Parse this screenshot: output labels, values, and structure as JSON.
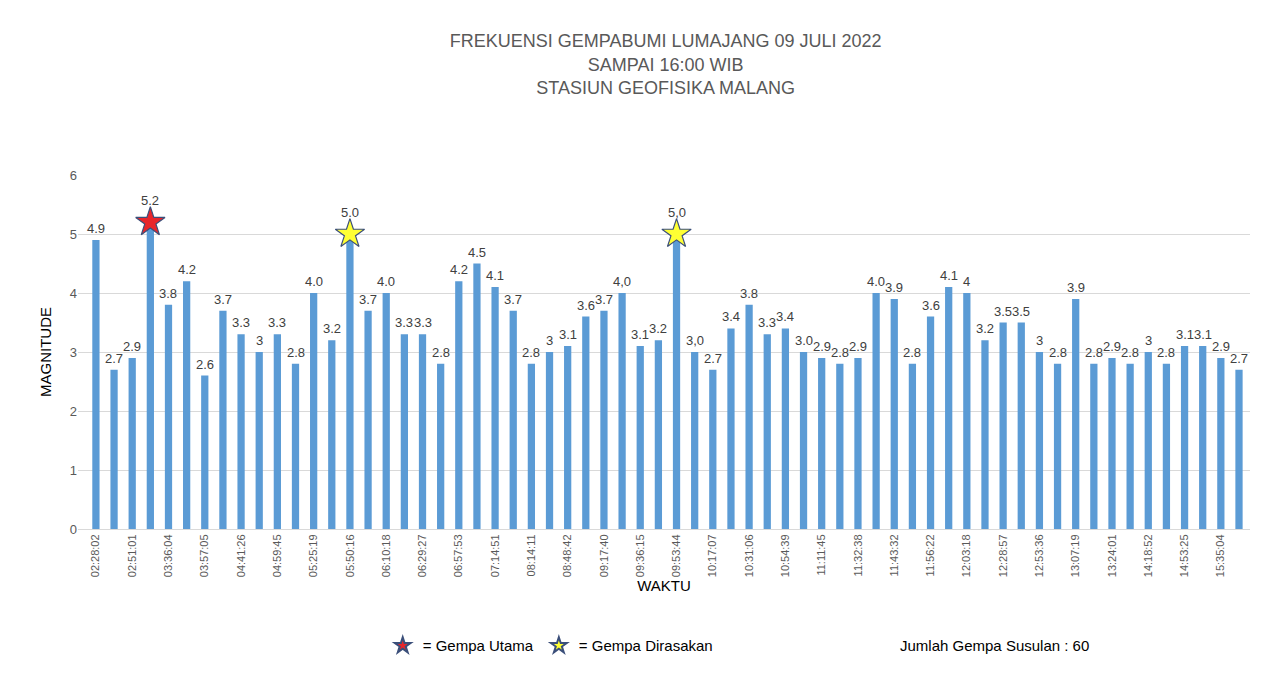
{
  "chart_data": {
    "type": "bar",
    "title": [
      "FREKUENSI GEMPABUMI LUMAJANG 09 JULI 2022",
      "SAMPAI 16:00 WIB",
      "STASIUN GEOFISIKA MALANG"
    ],
    "x_label": "WAKTU",
    "y_label": "MAGNITUDE",
    "categories": [
      "02:28:02",
      null,
      "02:51:01",
      null,
      "03:36:04",
      null,
      "03:57:05",
      null,
      "04:41:26",
      null,
      "04:59:45",
      null,
      "05:25:19",
      null,
      "05:50:16",
      null,
      "06:10:18",
      null,
      "06:29:27",
      null,
      "06:57:53",
      null,
      "07:14:51",
      null,
      "08:14:11",
      null,
      "08:48:42",
      null,
      "09:17:40",
      null,
      "09:36:15",
      null,
      "09:53:44",
      null,
      "10:17:07",
      null,
      "10:31:06",
      null,
      "10:54:39",
      null,
      "11:11:45",
      null,
      "11:32:38",
      null,
      "11:43:32",
      null,
      "11:56:22",
      null,
      "12:03:18",
      null,
      "12:28:57",
      null,
      "12:53:36",
      null,
      "13:07:19",
      null,
      "13:24:01",
      null,
      "14:18:52",
      null,
      "14:53:25",
      null,
      "15:35:04",
      null
    ],
    "values": [
      4.9,
      2.7,
      2.9,
      5.2,
      3.8,
      4.2,
      2.6,
      3.7,
      3.3,
      3,
      3.3,
      2.8,
      4.0,
      3.2,
      5.0,
      3.7,
      4.0,
      3.3,
      3.3,
      2.8,
      4.2,
      4.5,
      4.1,
      3.7,
      2.8,
      3,
      3.1,
      3.6,
      3.7,
      4.0,
      3.1,
      3.2,
      5.0,
      3.0,
      2.7,
      3.4,
      3.8,
      3.3,
      3.4,
      3.0,
      2.9,
      2.8,
      2.9,
      4.0,
      3.9,
      2.8,
      3.6,
      4.1,
      4,
      3.2,
      3.5,
      3.5,
      3,
      2.8,
      3.9,
      2.8,
      2.9,
      2.8,
      3,
      2.8,
      3.1,
      3.1,
      2.9,
      2.7
    ],
    "value_labels": [
      "4.9",
      "2.7",
      "2.9",
      "5.2",
      "3.8",
      "4.2",
      "2.6",
      "3.7",
      "3.3",
      "3",
      "3.3",
      "2.8",
      "4.0",
      "3.2",
      "5.0",
      "3.7",
      "4.0",
      "3.3",
      "3.3",
      "2.8",
      "4.2",
      "4.5",
      "4.1",
      "3.7",
      "2.8",
      "3",
      "3.1",
      "3.6",
      "3.7",
      "4,0",
      "3.1",
      "3.2",
      "5,0",
      "3,0",
      "2.7",
      "3.4",
      "3.8",
      "3.3",
      "3.4",
      "3.0",
      "2.9",
      "2.8",
      "2.9",
      "4.0",
      "3.9",
      "2.8",
      "3.6",
      "4.1",
      "4",
      "3.2",
      "3.5",
      "3.5",
      "3",
      "2.8",
      "3.9",
      "2.8",
      "2.9",
      "2.8",
      "3",
      "2.8",
      "3.1",
      "3.1",
      "2.9",
      "2.7"
    ],
    "color": "#5b9bd5",
    "data_labels": true,
    "markers": [
      {
        "name": "= Gempa Utama",
        "color": "#e8262b",
        "marker": "star",
        "indices": [
          3
        ]
      },
      {
        "name": "= Gempa Dirasakan",
        "color": "#ffff33",
        "marker": "star",
        "indices": [
          14,
          32
        ]
      }
    ],
    "note": "Jumlah Gempa Susulan : 60",
    "ylim": [
      0,
      6
    ],
    "yticks": [
      0,
      1,
      2,
      3,
      4,
      5,
      6
    ],
    "grid": true,
    "legend": "bottom"
  }
}
